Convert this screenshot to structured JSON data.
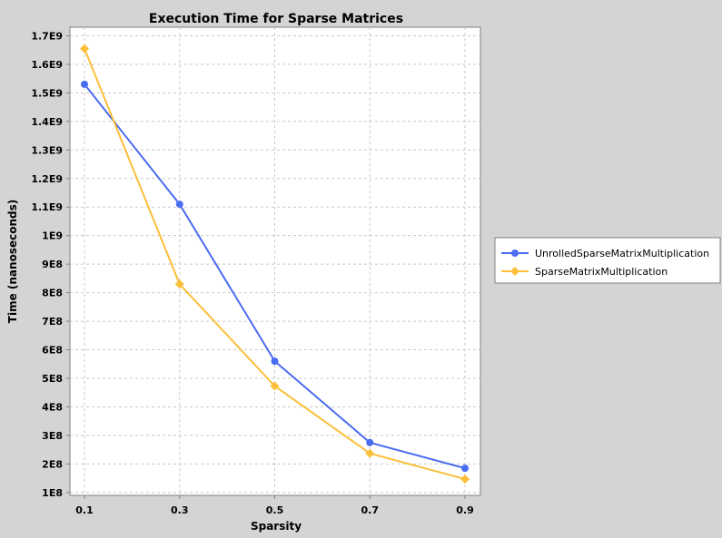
{
  "chart_data": {
    "type": "line",
    "title": "Execution Time for Sparse Matrices",
    "xlabel": "Sparsity",
    "ylabel": "Time (nanoseconds)",
    "x": [
      0.1,
      0.3,
      0.5,
      0.7,
      0.9
    ],
    "x_tick_labels": [
      "0.1",
      "0.3",
      "0.5",
      "0.7",
      "0.9"
    ],
    "ylim": [
      90000000,
      1730000000
    ],
    "y_ticks": [
      100000000,
      200000000,
      300000000,
      400000000,
      500000000,
      600000000,
      700000000,
      800000000,
      900000000,
      1000000000,
      1100000000,
      1200000000,
      1300000000,
      1400000000,
      1500000000,
      1600000000,
      1700000000
    ],
    "y_tick_labels": [
      "1E8",
      "2E8",
      "3E8",
      "4E8",
      "5E8",
      "6E8",
      "7E8",
      "8E8",
      "9E8",
      "1E9",
      "1.1E9",
      "1.2E9",
      "1.3E9",
      "1.4E9",
      "1.5E9",
      "1.6E9",
      "1.7E9"
    ],
    "grid": true,
    "legend_position": "right",
    "series": [
      {
        "name": "UnrolledSparseMatrixMultiplication",
        "color": "#4a6cf0",
        "marker": "circle",
        "values": [
          1530000000,
          1110000000,
          560000000,
          275000000,
          185000000
        ]
      },
      {
        "name": "SparseMatrixMultiplication",
        "color": "#fbbf3a",
        "marker": "diamond",
        "values": [
          1655000000,
          830000000,
          473000000,
          237000000,
          147000000
        ]
      }
    ]
  }
}
